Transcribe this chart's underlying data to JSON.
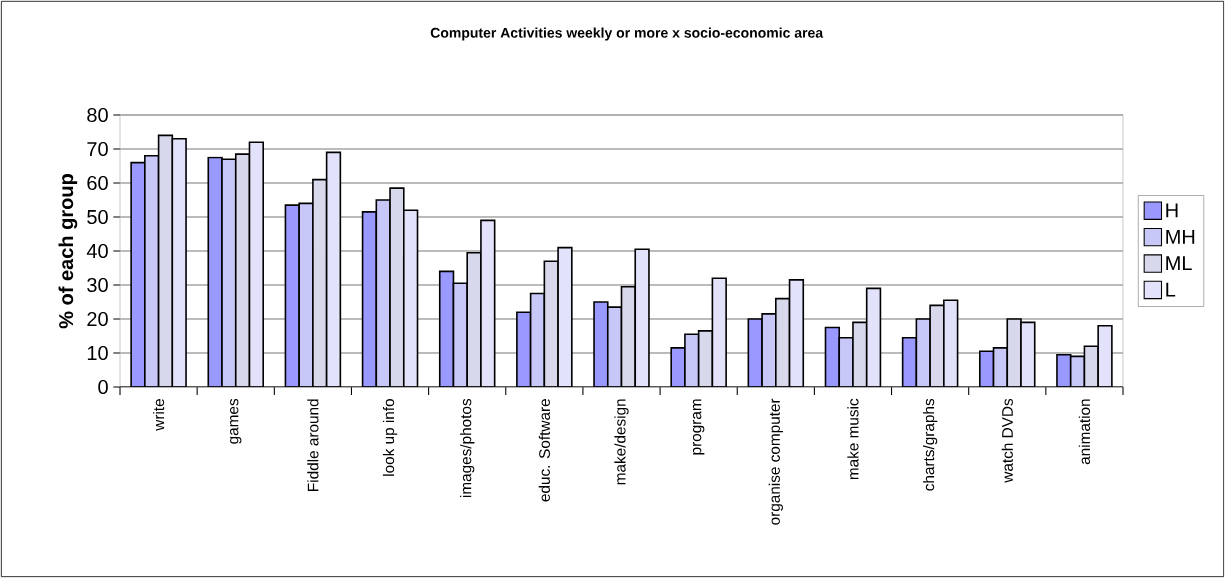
{
  "chart_data": {
    "type": "bar",
    "title": "Computer Activities weekly or more x socio-economic area",
    "ylabel": "% of each group",
    "categories": [
      "write",
      "games",
      "Fiddle around",
      "look up info",
      "images/photos",
      "educ. Software",
      "make/design",
      "program",
      "organise computer",
      "make music",
      "charts/graphs",
      "watch DVDs",
      "animation"
    ],
    "series": [
      {
        "name": "H",
        "color": "#9999ff",
        "values": [
          66,
          67.5,
          53.5,
          51.5,
          34,
          22,
          25,
          11.5,
          20,
          17.5,
          14.5,
          10.5,
          9.5
        ]
      },
      {
        "name": "MH",
        "color": "#c8c8f8",
        "values": [
          68,
          67,
          54,
          55,
          30.5,
          27.5,
          23.5,
          15.5,
          21.5,
          14.5,
          20,
          11.5,
          9
        ]
      },
      {
        "name": "ML",
        "color": "#d8d8ec",
        "values": [
          74,
          68.5,
          61,
          58.5,
          39.5,
          37,
          29.5,
          16.5,
          26,
          19,
          24,
          20,
          12
        ]
      },
      {
        "name": "L",
        "color": "#e2e2fa",
        "values": [
          73,
          72,
          69,
          52,
          49,
          41,
          40.5,
          32,
          31.5,
          29,
          25.5,
          19,
          18
        ]
      }
    ],
    "ylim": [
      0,
      80
    ],
    "yticks": [
      0,
      10,
      20,
      30,
      40,
      50,
      60,
      70,
      80
    ],
    "grid": "y",
    "legend": "right"
  }
}
